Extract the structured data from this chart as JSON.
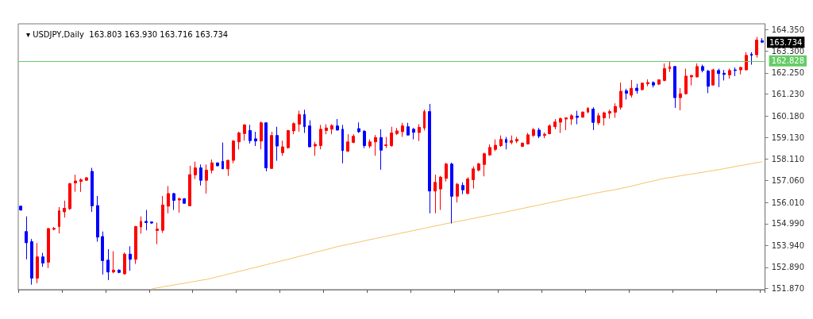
{
  "chart_data": {
    "type": "candlestick",
    "title": "▾ USDJPY,Daily  163.803 163.930 163.716 163.734",
    "categories": [
      null,
      null,
      null,
      null,
      null,
      null,
      null,
      null,
      null,
      null,
      null,
      null,
      null,
      null,
      null,
      null,
      null,
      null,
      null,
      null,
      null,
      null,
      null,
      null,
      null,
      null,
      null,
      null,
      null,
      null,
      null,
      null,
      null,
      null,
      null,
      null,
      null,
      null,
      null,
      null,
      null,
      null,
      null,
      null,
      null,
      null,
      null,
      null,
      null,
      null,
      null,
      null,
      null,
      null,
      null,
      null,
      null,
      null,
      null,
      null,
      null,
      null,
      null,
      null,
      null,
      null,
      null,
      null,
      null,
      null,
      null,
      null,
      null,
      null,
      null,
      null,
      null,
      null,
      null,
      null,
      null,
      null,
      null,
      null,
      null,
      null,
      null,
      null,
      null,
      null,
      null,
      null,
      null,
      null,
      null,
      null,
      null,
      null,
      null,
      null,
      null,
      null,
      null,
      null,
      null,
      null,
      null,
      null,
      null,
      null,
      null,
      null,
      null,
      null,
      null,
      null,
      null,
      null,
      null,
      null,
      null,
      null,
      null,
      null,
      null,
      null,
      null,
      null,
      null,
      null,
      null,
      null,
      null,
      null,
      null,
      null,
      null
    ],
    "series": [
      {
        "ohlc": [
          [
            155.83,
            155.85,
            155.61,
            155.65
          ],
          [
            154.61,
            155.34,
            153.27,
            154.07
          ],
          [
            154.12,
            154.25,
            152.05,
            152.36
          ],
          [
            152.36,
            154.06,
            152.12,
            153.39
          ],
          [
            153.39,
            153.58,
            152.91,
            153.09
          ],
          [
            153.13,
            154.79,
            152.85,
            154.75
          ],
          [
            154.72,
            154.83,
            154.67,
            154.76
          ],
          [
            154.85,
            155.79,
            154.52,
            155.61
          ],
          [
            155.56,
            156.1,
            155.28,
            155.73
          ],
          [
            155.71,
            156.95,
            155.65,
            156.92
          ],
          [
            156.95,
            157.35,
            156.53,
            157.05
          ],
          [
            157.02,
            157.17,
            156.52,
            157.11
          ],
          [
            157.08,
            157.24,
            157.06,
            157.2
          ],
          [
            157.51,
            157.68,
            155.56,
            155.85
          ],
          [
            155.86,
            156.32,
            154.12,
            154.34
          ],
          [
            154.37,
            154.61,
            152.54,
            153.21
          ],
          [
            153.23,
            153.76,
            152.27,
            152.66
          ],
          [
            152.66,
            153.66,
            152.6,
            152.75
          ],
          [
            152.75,
            152.79,
            152.6,
            152.64
          ],
          [
            152.57,
            153.6,
            152.54,
            153.52
          ],
          [
            153.52,
            153.9,
            152.72,
            153.27
          ],
          [
            153.27,
            154.88,
            153.05,
            154.85
          ],
          [
            154.83,
            155.34,
            154.51,
            155.1
          ],
          [
            155.1,
            155.65,
            154.67,
            155.04
          ],
          [
            155.07,
            155.1,
            154.98,
            155.02
          ],
          [
            154.66,
            155.04,
            154.0,
            154.73
          ],
          [
            154.67,
            156.32,
            154.55,
            155.89
          ],
          [
            155.83,
            156.8,
            155.49,
            156.44
          ],
          [
            156.44,
            156.47,
            155.65,
            156.11
          ],
          [
            156.13,
            156.25,
            155.52,
            156.19
          ],
          [
            156.19,
            156.22,
            155.95,
            155.97
          ],
          [
            155.85,
            157.78,
            155.85,
            157.35
          ],
          [
            157.34,
            157.98,
            157.14,
            157.68
          ],
          [
            157.68,
            157.84,
            156.83,
            157.08
          ],
          [
            157.08,
            157.84,
            156.44,
            157.57
          ],
          [
            157.56,
            158.08,
            157.41,
            157.92
          ],
          [
            157.92,
            157.93,
            157.75,
            157.78
          ],
          [
            157.99,
            158.9,
            157.63,
            157.63
          ],
          [
            157.63,
            158.08,
            157.29,
            158.04
          ],
          [
            158.04,
            159.02,
            157.9,
            158.97
          ],
          [
            158.93,
            159.42,
            158.57,
            159.36
          ],
          [
            159.33,
            159.78,
            158.99,
            159.75
          ],
          [
            159.48,
            159.75,
            158.85,
            158.99
          ],
          [
            159.08,
            159.42,
            158.73,
            158.97
          ],
          [
            158.97,
            159.91,
            158.57,
            159.85
          ],
          [
            159.85,
            159.87,
            157.51,
            157.68
          ],
          [
            157.65,
            159.42,
            157.63,
            159.24
          ],
          [
            159.24,
            159.66,
            158.02,
            158.73
          ],
          [
            158.41,
            158.99,
            158.26,
            158.69
          ],
          [
            158.65,
            159.5,
            158.6,
            159.48
          ],
          [
            159.46,
            159.87,
            159.3,
            159.81
          ],
          [
            159.78,
            160.43,
            159.42,
            160.25
          ],
          [
            160.25,
            160.48,
            159.36,
            159.66
          ],
          [
            159.7,
            159.97,
            158.69,
            158.69
          ],
          [
            158.73,
            158.93,
            158.26,
            158.81
          ],
          [
            158.75,
            159.75,
            158.57,
            159.54
          ],
          [
            159.48,
            159.78,
            159.3,
            159.6
          ],
          [
            159.54,
            159.78,
            159.3,
            159.72
          ],
          [
            159.7,
            160.03,
            159.48,
            159.5
          ],
          [
            159.54,
            159.75,
            157.9,
            158.51
          ],
          [
            158.48,
            159.3,
            158.45,
            158.93
          ],
          [
            158.9,
            159.3,
            158.87,
            159.2
          ],
          [
            159.57,
            159.87,
            159.36,
            159.42
          ],
          [
            159.44,
            159.5,
            158.63,
            158.75
          ],
          [
            158.73,
            159.05,
            158.63,
            158.93
          ],
          [
            158.93,
            159.26,
            158.26,
            159.14
          ],
          [
            159.14,
            159.54,
            157.59,
            158.53
          ],
          [
            158.75,
            159.17,
            158.63,
            158.79
          ],
          [
            158.75,
            159.66,
            158.69,
            159.36
          ],
          [
            159.33,
            159.6,
            159.26,
            159.46
          ],
          [
            159.42,
            159.85,
            159.17,
            159.7
          ],
          [
            159.66,
            159.85,
            159.24,
            159.26
          ],
          [
            159.54,
            159.6,
            159.05,
            159.39
          ],
          [
            159.38,
            159.78,
            158.97,
            159.63
          ],
          [
            159.6,
            160.48,
            159.48,
            160.39
          ],
          [
            160.39,
            160.76,
            155.49,
            156.56
          ],
          [
            156.56,
            157.35,
            155.49,
            156.98
          ],
          [
            156.66,
            157.29,
            155.65,
            157.23
          ],
          [
            157.17,
            157.92,
            157.02,
            157.86
          ],
          [
            157.86,
            157.93,
            155.0,
            156.31
          ],
          [
            156.31,
            156.95,
            156.01,
            156.89
          ],
          [
            156.83,
            156.98,
            156.41,
            156.62
          ],
          [
            156.44,
            157.23,
            156.41,
            157.14
          ],
          [
            157.11,
            157.75,
            156.68,
            157.63
          ],
          [
            157.57,
            157.92,
            157.51,
            157.87
          ],
          [
            157.84,
            158.41,
            157.27,
            158.36
          ],
          [
            158.3,
            158.81,
            158.26,
            158.66
          ],
          [
            158.57,
            159.05,
            158.48,
            158.77
          ],
          [
            158.75,
            159.24,
            158.69,
            159.05
          ],
          [
            159.05,
            159.17,
            158.57,
            158.9
          ],
          [
            158.91,
            159.24,
            158.81,
            158.99
          ],
          [
            158.97,
            159.17,
            158.87,
            159.05
          ],
          [
            158.71,
            158.9,
            158.69,
            158.87
          ],
          [
            158.83,
            159.36,
            158.81,
            159.27
          ],
          [
            159.24,
            159.6,
            159.17,
            159.52
          ],
          [
            159.5,
            159.6,
            159.11,
            159.21
          ],
          [
            159.24,
            159.38,
            159.11,
            159.3
          ],
          [
            159.32,
            159.78,
            159.3,
            159.7
          ],
          [
            159.66,
            160.03,
            159.54,
            159.89
          ],
          [
            159.88,
            160.11,
            159.36,
            160.05
          ],
          [
            160.03,
            160.11,
            159.5,
            160.09
          ],
          [
            160.03,
            160.27,
            159.75,
            160.19
          ],
          [
            160.17,
            160.43,
            159.78,
            160.11
          ],
          [
            160.12,
            160.39,
            160.09,
            160.37
          ],
          [
            160.37,
            160.6,
            160.31,
            160.55
          ],
          [
            160.51,
            160.6,
            159.5,
            159.87
          ],
          [
            159.85,
            160.33,
            159.75,
            160.19
          ],
          [
            160.09,
            160.39,
            159.72,
            160.33
          ],
          [
            160.31,
            160.48,
            160.05,
            160.39
          ],
          [
            160.36,
            160.79,
            160.09,
            160.64
          ],
          [
            160.6,
            161.79,
            160.48,
            161.37
          ],
          [
            161.39,
            161.49,
            160.97,
            161.27
          ],
          [
            161.18,
            161.91,
            161.06,
            161.51
          ],
          [
            161.52,
            161.73,
            161.25,
            161.4
          ],
          [
            161.45,
            161.79,
            161.4,
            161.76
          ],
          [
            161.73,
            161.94,
            161.61,
            161.79
          ],
          [
            161.79,
            161.85,
            161.55,
            161.67
          ],
          [
            161.71,
            161.94,
            161.67,
            161.92
          ],
          [
            161.89,
            162.71,
            161.85,
            162.46
          ],
          [
            162.46,
            162.79,
            162.3,
            162.55
          ],
          [
            162.56,
            162.59,
            160.57,
            161.06
          ],
          [
            161.06,
            161.52,
            160.45,
            161.25
          ],
          [
            161.25,
            162.46,
            161.22,
            162.1
          ],
          [
            162.06,
            162.16,
            161.65,
            162.13
          ],
          [
            162.06,
            162.71,
            162.04,
            162.56
          ],
          [
            162.56,
            162.65,
            162.28,
            162.37
          ],
          [
            162.34,
            162.4,
            161.28,
            161.61
          ],
          [
            161.67,
            162.46,
            161.65,
            162.4
          ],
          [
            162.37,
            162.46,
            161.57,
            162.22
          ],
          [
            162.24,
            162.4,
            161.89,
            162.18
          ],
          [
            162.16,
            162.46,
            161.98,
            162.37
          ],
          [
            162.4,
            162.52,
            162.1,
            162.37
          ],
          [
            162.4,
            162.55,
            162.18,
            162.52
          ],
          [
            162.4,
            163.25,
            162.38,
            163.1
          ],
          [
            163.16,
            163.25,
            162.65,
            163.1
          ],
          [
            163.13,
            163.99,
            162.99,
            163.84
          ],
          [
            163.803,
            163.93,
            163.716,
            163.734
          ]
        ],
        "colors": [
          "#0000ff",
          "#0000ff",
          "#0000ff",
          "#ff0000",
          "#0000ff",
          "#ff0000",
          "#ff0000",
          "#ff0000",
          "#ff0000",
          "#ff0000",
          "#ff0000",
          "#ff0000",
          "#ff0000",
          "#0000ff",
          "#0000ff",
          "#0000ff",
          "#0000ff",
          "#ff0000",
          "#0000ff",
          "#ff0000",
          "#0000ff",
          "#ff0000",
          "#ff0000",
          "#0000ff",
          "#0000ff",
          "#ff0000",
          "#ff0000",
          "#ff0000",
          "#0000ff",
          "#ff0000",
          "#0000ff",
          "#ff0000",
          "#ff0000",
          "#0000ff",
          "#ff0000",
          "#ff0000",
          "#0000ff",
          "#0000ff",
          "#ff0000",
          "#ff0000",
          "#ff0000",
          "#ff0000",
          "#0000ff",
          "#0000ff",
          "#ff0000",
          "#0000ff",
          "#ff0000",
          "#0000ff",
          "#ff0000",
          "#ff0000",
          "#ff0000",
          "#ff0000",
          "#0000ff",
          "#0000ff",
          "#ff0000",
          "#ff0000",
          "#ff0000",
          "#ff0000",
          "#0000ff",
          "#0000ff",
          "#ff0000",
          "#ff0000",
          "#0000ff",
          "#0000ff",
          "#ff0000",
          "#ff0000",
          "#0000ff",
          "#ff0000",
          "#ff0000",
          "#ff0000",
          "#ff0000",
          "#0000ff",
          "#0000ff",
          "#ff0000",
          "#ff0000",
          "#0000ff",
          "#ff0000",
          "#ff0000",
          "#ff0000",
          "#0000ff",
          "#ff0000",
          "#0000ff",
          "#ff0000",
          "#ff0000",
          "#ff0000",
          "#ff0000",
          "#ff0000",
          "#ff0000",
          "#ff0000",
          "#0000ff",
          "#ff0000",
          "#ff0000",
          "#ff0000",
          "#ff0000",
          "#ff0000",
          "#0000ff",
          "#ff0000",
          "#ff0000",
          "#ff0000",
          "#ff0000",
          "#ff0000",
          "#ff0000",
          "#0000ff",
          "#ff0000",
          "#ff0000",
          "#0000ff",
          "#ff0000",
          "#ff0000",
          "#ff0000",
          "#ff0000",
          "#ff0000",
          "#0000ff",
          "#ff0000",
          "#0000ff",
          "#ff0000",
          "#ff0000",
          "#0000ff",
          "#ff0000",
          "#ff0000",
          "#ff0000",
          "#0000ff",
          "#ff0000",
          "#ff0000",
          "#ff0000",
          "#ff0000",
          "#0000ff",
          "#0000ff",
          "#ff0000",
          "#0000ff",
          "#0000ff",
          "#ff0000",
          "#0000ff",
          "#ff0000",
          "#ff0000",
          "#0000ff",
          "#ff0000",
          "#0000ff"
        ]
      },
      {
        "type": "line",
        "color": "#f5c26b",
        "values": [
          null,
          null,
          null,
          null,
          null,
          null,
          null,
          null,
          null,
          null,
          null,
          null,
          null,
          null,
          null,
          null,
          null,
          null,
          null,
          null,
          null,
          null,
          null,
          null,
          151.85,
          151.9,
          151.94,
          151.99,
          152.03,
          152.08,
          152.12,
          152.17,
          152.21,
          152.26,
          152.3,
          152.36,
          152.43,
          152.49,
          152.56,
          152.62,
          152.69,
          152.75,
          152.82,
          152.88,
          152.95,
          153.01,
          153.08,
          153.14,
          153.21,
          153.27,
          153.34,
          153.41,
          153.47,
          153.54,
          153.61,
          153.68,
          153.74,
          153.81,
          153.88,
          153.94,
          153.99,
          154.05,
          154.1,
          154.16,
          154.22,
          154.27,
          154.33,
          154.38,
          154.44,
          154.49,
          154.55,
          154.6,
          154.66,
          154.71,
          154.77,
          154.82,
          154.88,
          154.93,
          154.99,
          155.04,
          155.09,
          155.14,
          155.19,
          155.24,
          155.3,
          155.35,
          155.4,
          155.45,
          155.5,
          155.56,
          155.61,
          155.67,
          155.72,
          155.78,
          155.83,
          155.89,
          155.94,
          156.0,
          156.05,
          156.11,
          156.16,
          156.22,
          156.27,
          156.33,
          156.38,
          156.44,
          156.49,
          156.54,
          156.58,
          156.63,
          156.68,
          156.74,
          156.8,
          156.86,
          156.93,
          156.99,
          157.05,
          157.11,
          157.17,
          157.21,
          157.25,
          157.3,
          157.34,
          157.38,
          157.42,
          157.46,
          157.51,
          157.55,
          157.59,
          157.64,
          157.69,
          157.74,
          157.79,
          157.83,
          157.88,
          157.93,
          157.98
        ]
      }
    ],
    "ylim": [
      151.81,
      164.62
    ],
    "yticks": [
      {
        "value": 151.87,
        "label": "151.870"
      },
      {
        "value": 152.89,
        "label": "152.890"
      },
      {
        "value": 153.94,
        "label": "153.940"
      },
      {
        "value": 154.99,
        "label": "154.990"
      },
      {
        "value": 156.01,
        "label": "156.010"
      },
      {
        "value": 157.06,
        "label": "157.060"
      },
      {
        "value": 158.11,
        "label": "158.110"
      },
      {
        "value": 159.13,
        "label": "159.130"
      },
      {
        "value": 160.18,
        "label": "160.180"
      },
      {
        "value": 161.23,
        "label": "161.230"
      },
      {
        "value": 162.25,
        "label": "162.250"
      },
      {
        "value": 163.3,
        "label": "163.300"
      },
      {
        "value": 164.35,
        "label": "164.350"
      }
    ],
    "ref_lines": [
      {
        "axis": "y",
        "value": 162.828,
        "label": "162.828",
        "color": "#66cc66"
      }
    ],
    "annotations": [
      "163.734"
    ],
    "tick_labels": "y",
    "grid": false
  }
}
